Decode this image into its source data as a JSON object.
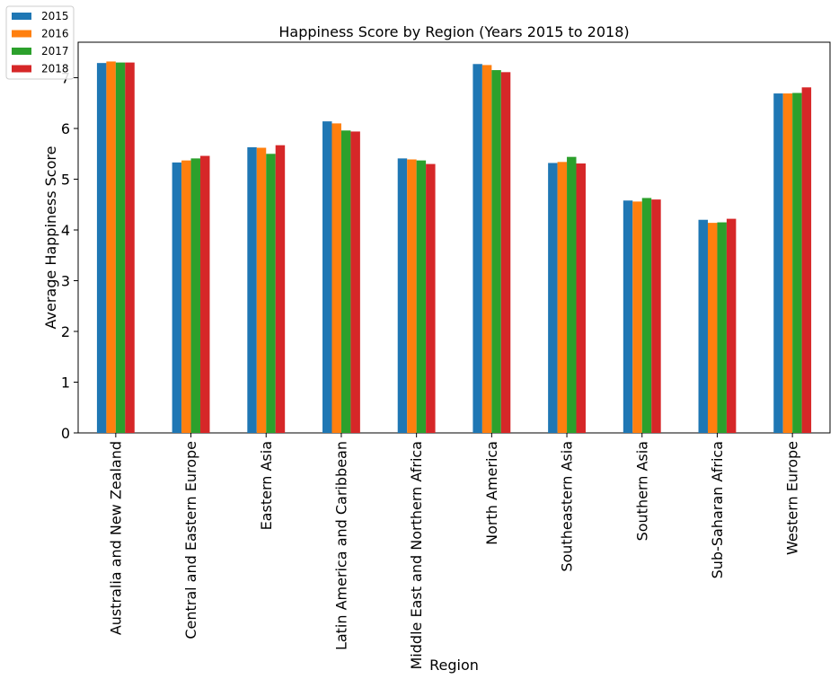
{
  "chart_data": {
    "type": "bar",
    "title": "Happiness Score by Region (Years 2015 to 2018)",
    "xlabel": "Region",
    "ylabel": "Average Happiness Score",
    "ylim": [
      0,
      7.7
    ],
    "yticks": [
      0,
      1,
      2,
      3,
      4,
      5,
      6,
      7
    ],
    "grid": false,
    "legend_position": "top-left",
    "categories": [
      "Australia and New Zealand",
      "Central and Eastern Europe",
      "Eastern Asia",
      "Latin America and Caribbean",
      "Middle East and Northern Africa",
      "North America",
      "Southeastern Asia",
      "Southern Asia",
      "Sub-Saharan Africa",
      "Western Europe"
    ],
    "series": [
      {
        "name": "2015",
        "color": "#1f77b4",
        "values": [
          7.29,
          5.33,
          5.63,
          6.14,
          5.41,
          7.27,
          5.32,
          4.58,
          4.2,
          6.69
        ]
      },
      {
        "name": "2016",
        "color": "#ff7f0e",
        "values": [
          7.32,
          5.37,
          5.62,
          6.1,
          5.39,
          7.25,
          5.34,
          4.56,
          4.14,
          6.69
        ]
      },
      {
        "name": "2017",
        "color": "#2ca02c",
        "values": [
          7.3,
          5.41,
          5.5,
          5.96,
          5.37,
          7.15,
          5.44,
          4.63,
          4.15,
          6.7
        ]
      },
      {
        "name": "2018",
        "color": "#d62728",
        "values": [
          7.3,
          5.46,
          5.67,
          5.94,
          5.3,
          7.11,
          5.31,
          4.6,
          4.22,
          6.81
        ]
      }
    ]
  }
}
